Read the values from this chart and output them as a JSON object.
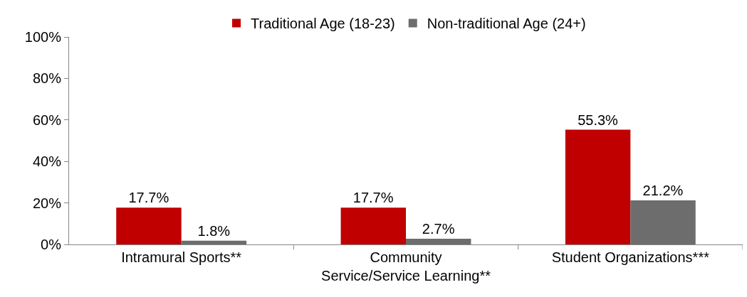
{
  "chart_data": {
    "type": "bar",
    "categories": [
      "Intramural Sports**",
      "Community Service/Service Learning**",
      "Student Organizations***"
    ],
    "series": [
      {
        "name": "Traditional Age (18-23)",
        "color": "#c00000",
        "values": [
          17.7,
          17.7,
          55.3
        ],
        "value_labels": [
          "17.7%",
          "17.7%",
          "55.3%"
        ]
      },
      {
        "name": "Non-traditional Age (24+)",
        "color": "#6d6d6d",
        "values": [
          1.8,
          2.7,
          21.2
        ],
        "value_labels": [
          "1.8%",
          "2.7%",
          "21.2%"
        ]
      }
    ],
    "ylim": [
      0,
      100
    ],
    "yticks": [
      {
        "value": 0,
        "label": "0%"
      },
      {
        "value": 20,
        "label": "20%"
      },
      {
        "value": 40,
        "label": "40%"
      },
      {
        "value": 60,
        "label": "60%"
      },
      {
        "value": 80,
        "label": "80%"
      },
      {
        "value": 100,
        "label": "100%"
      }
    ],
    "grid": false,
    "legend": "top"
  }
}
